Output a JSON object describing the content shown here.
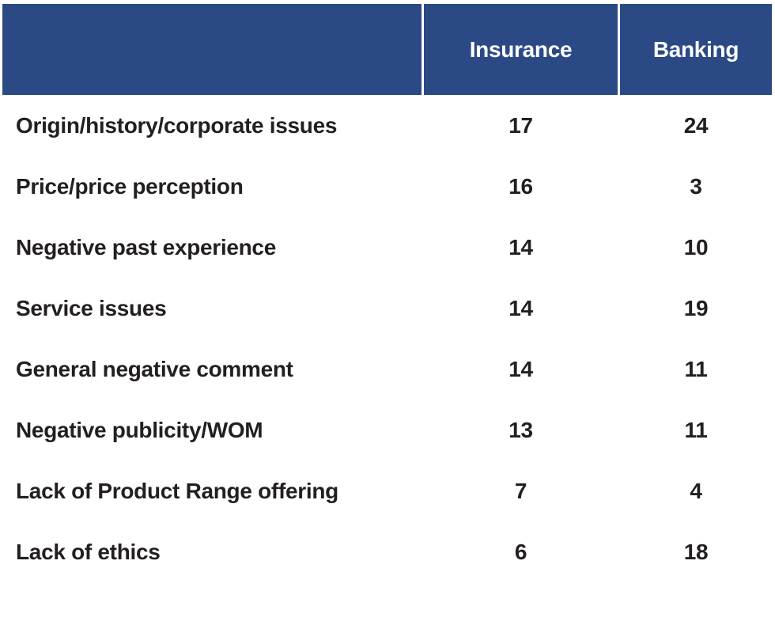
{
  "chart_data": {
    "type": "table",
    "title": "",
    "categories": [
      "Origin/history/corporate issues",
      "Price/price perception",
      "Negative past experience",
      "Service issues",
      "General negative comment",
      "Negative publicity/WOM",
      "Lack of Product Range offering",
      "Lack of ethics"
    ],
    "series": [
      {
        "name": "Insurance",
        "values": [
          17,
          16,
          14,
          14,
          14,
          13,
          7,
          6
        ]
      },
      {
        "name": "Banking",
        "values": [
          24,
          3,
          10,
          19,
          11,
          11,
          4,
          18
        ]
      }
    ],
    "layout_hints": {
      "header_background": "#2b4a85",
      "header_text_color": "#ffffff",
      "body_text_color": "#231f20",
      "gridlines": "none",
      "column_separator_color": "#ffffff"
    }
  },
  "colors": {
    "header_bg": "#2b4a85",
    "header_text": "#ffffff",
    "body_text": "#231f20",
    "background": "#ffffff"
  }
}
